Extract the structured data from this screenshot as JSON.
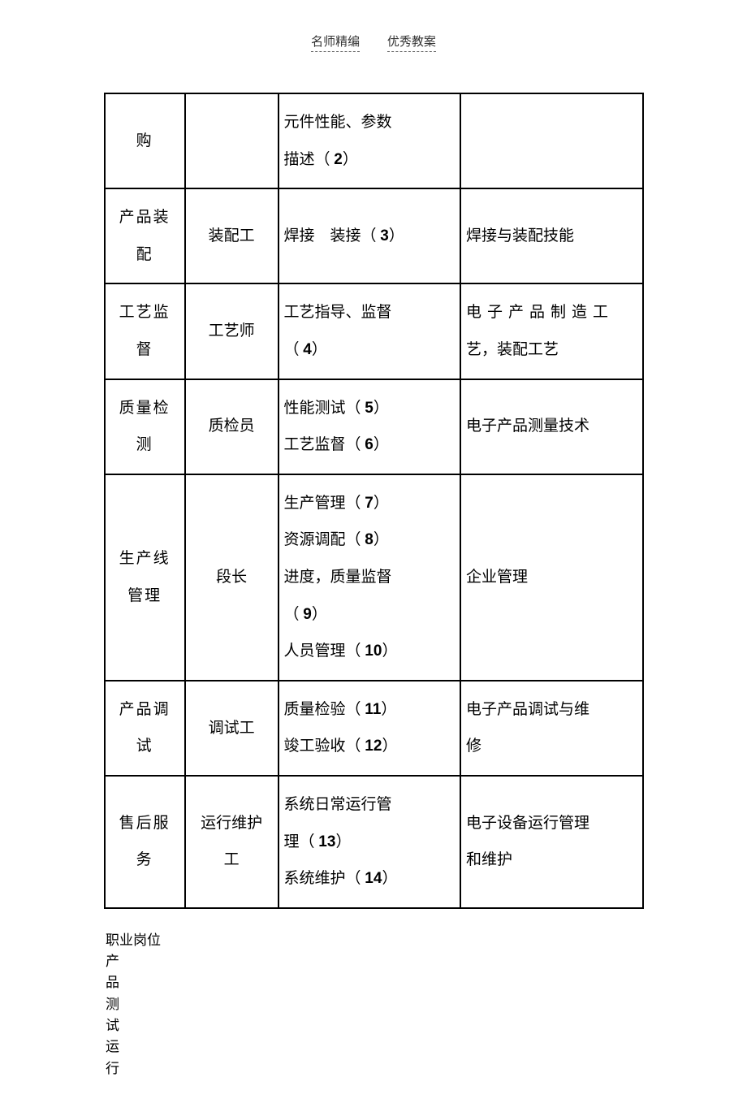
{
  "header": {
    "left": "名师精编",
    "right": "优秀教案"
  },
  "table": {
    "columns_width": {
      "col1": 95,
      "col2": 110,
      "col3": 215,
      "col4": 215
    },
    "border_color": "#000000",
    "text_color": "#000000",
    "font_size": 19,
    "rows": [
      {
        "c1": "购",
        "c2": "",
        "c3": "元件性能、参数描述（ 2）",
        "c4": ""
      },
      {
        "c1": "产品装配",
        "c2": "装配工",
        "c3": "焊接　装接（ 3）",
        "c4": "焊接与装配技能"
      },
      {
        "c1": "工艺监督",
        "c2": "工艺师",
        "c3": "工艺指导、监督（ 4）",
        "c4_spaced": "电子产品制造工",
        "c4_line2": "艺，装配工艺"
      },
      {
        "c1": "质量检测",
        "c2": "质检员",
        "c3": "性能测试（ 5）工艺监督（ 6）",
        "c4": "电子产品测量技术"
      },
      {
        "c1": "生产线管理",
        "c2": "段长",
        "c3": "生产管理（ 7）资源调配（ 8）进度，质量监督（ 9）人员管理（ 10）",
        "c4": "企业管理"
      },
      {
        "c1": "产品调试",
        "c2": "调试工",
        "c3": "质量检验（ 11）竣工验收（ 12）",
        "c4": "电子产品调试与维修"
      },
      {
        "c1": "售后服务",
        "c2": "运行维护工",
        "c3": "系统日常运行管理（ 13）系统维护（ 14）",
        "c4": "电子设备运行管理和维护"
      }
    ]
  },
  "bottom": {
    "title": "职业岗位",
    "chars": [
      "产",
      "品",
      "测",
      "试",
      "运",
      "行"
    ]
  }
}
